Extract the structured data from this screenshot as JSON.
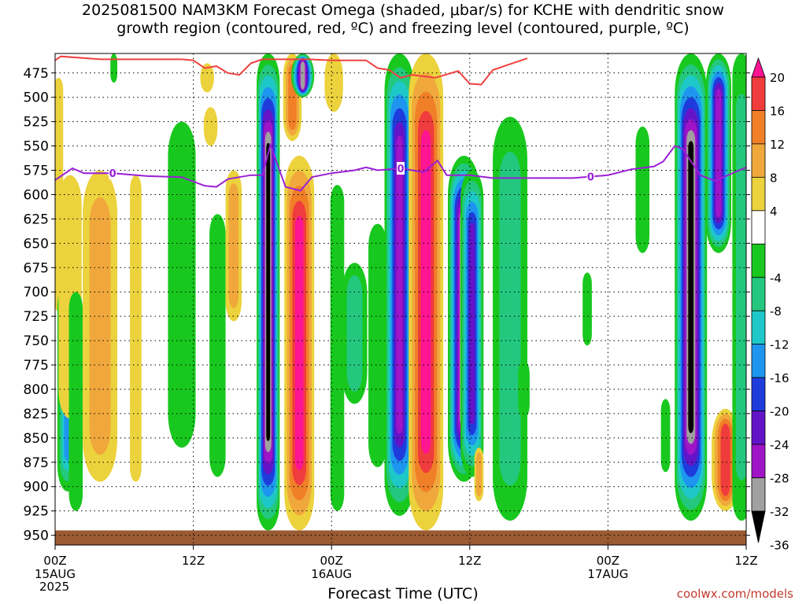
{
  "title": {
    "line1": "2025081500 NAM3KM Forecast Omega (shaded, μbar/s) for KCHE with dendritic snow",
    "line2": "growth region (contoured, red, ºC) and freezing level (contoured, purple, ºC)"
  },
  "credit": "coolwx.com/models",
  "chart_data": {
    "type": "heatmap",
    "title": "2025081500 NAM3KM Forecast Omega (shaded, μbar/s) for KCHE with dendritic snow growth region (contoured, red, ºC) and freezing level (contoured, purple, ºC)",
    "xlabel": "Forecast Time (UTC)",
    "year": "2025",
    "x_ticks": [
      {
        "hour": 0,
        "label": "00Z",
        "sub": "15AUG"
      },
      {
        "hour": 12,
        "label": "12Z",
        "sub": ""
      },
      {
        "hour": 24,
        "label": "00Z",
        "sub": "16AUG"
      },
      {
        "hour": 36,
        "label": "12Z",
        "sub": ""
      },
      {
        "hour": 48,
        "label": "00Z",
        "sub": "17AUG"
      },
      {
        "hour": 60,
        "label": "12Z",
        "sub": ""
      }
    ],
    "xlim": [
      0,
      60
    ],
    "ylim": [
      960,
      455
    ],
    "y_ticks": [
      475,
      500,
      525,
      550,
      575,
      600,
      625,
      650,
      675,
      700,
      725,
      750,
      775,
      800,
      825,
      850,
      875,
      900,
      925,
      950
    ],
    "grid": true,
    "colorbar": {
      "labels": [
        "20",
        "16",
        "12",
        "8",
        "4",
        "-4",
        "-8",
        "-12",
        "-16",
        "-20",
        "-24",
        "-28",
        "-32",
        "-36"
      ],
      "colors": [
        "#ff1493",
        "#f03c3c",
        "#f07f28",
        "#f0a83c",
        "#ecd23c",
        "#ffffff",
        "#18c81e",
        "#23c87e",
        "#1ec8c8",
        "#1e96f0",
        "#1e3cdc",
        "#6414c8",
        "#a014c8",
        "#a0a0a0",
        "#000000"
      ]
    },
    "freezing_level": {
      "label": "0",
      "points": [
        [
          0,
          585
        ],
        [
          1.5,
          573
        ],
        [
          2.5,
          578
        ],
        [
          5,
          578
        ],
        [
          8,
          581
        ],
        [
          11,
          582
        ],
        [
          13,
          591
        ],
        [
          14,
          592
        ],
        [
          15,
          584
        ],
        [
          17,
          580
        ],
        [
          18,
          580
        ],
        [
          18.7,
          549
        ],
        [
          20,
          592
        ],
        [
          21.3,
          596
        ],
        [
          22.3,
          582
        ],
        [
          24,
          578
        ],
        [
          26,
          575
        ],
        [
          27,
          572
        ],
        [
          28,
          575
        ],
        [
          30,
          573
        ],
        [
          32,
          577
        ],
        [
          33.2,
          565
        ],
        [
          34,
          580
        ],
        [
          36,
          580
        ],
        [
          38,
          583
        ],
        [
          42,
          583
        ],
        [
          45,
          583
        ],
        [
          48,
          580
        ],
        [
          50,
          574
        ],
        [
          52,
          571
        ],
        [
          52.8,
          566
        ],
        [
          53.8,
          550
        ],
        [
          54.5,
          553
        ],
        [
          56,
          580
        ],
        [
          57.3,
          586
        ],
        [
          59,
          577
        ],
        [
          60,
          572
        ]
      ],
      "label_hours": [
        5,
        30,
        46.5
      ]
    },
    "dgz_contour": {
      "points": [
        [
          0,
          462
        ],
        [
          0.5,
          458
        ],
        [
          4,
          461
        ],
        [
          8,
          461
        ],
        [
          11,
          461
        ],
        [
          12,
          462
        ],
        [
          13,
          470
        ],
        [
          14,
          468
        ],
        [
          15,
          475
        ],
        [
          16,
          477
        ],
        [
          17,
          465
        ],
        [
          18,
          461
        ],
        [
          22,
          461
        ],
        [
          24,
          462
        ],
        [
          27,
          462
        ],
        [
          28,
          470
        ],
        [
          29,
          472
        ],
        [
          30,
          480
        ],
        [
          31,
          477
        ],
        [
          33,
          480
        ],
        [
          35,
          473
        ],
        [
          36,
          486
        ],
        [
          37,
          487
        ],
        [
          38,
          472
        ],
        [
          40,
          464
        ],
        [
          41,
          460
        ]
      ]
    },
    "omega_cells": [
      {
        "hour": 0.3,
        "p0": 480,
        "p1": 720,
        "hw": 0.4,
        "v": 6
      },
      {
        "hour": 1.1,
        "p0": 690,
        "p1": 905,
        "hw": 0.9,
        "v": -16
      },
      {
        "hour": 1.3,
        "p0": 580,
        "p1": 830,
        "hw": 1.0,
        "v": 6
      },
      {
        "hour": 1.8,
        "p0": 700,
        "p1": 925,
        "hw": 0.6,
        "v": -6
      },
      {
        "hour": 3.9,
        "p0": 575,
        "p1": 895,
        "hw": 1.5,
        "v": 10
      },
      {
        "hour": 5.1,
        "p0": 455,
        "p1": 485,
        "hw": 0.3,
        "v": -6
      },
      {
        "hour": 7,
        "p0": 580,
        "p1": 895,
        "hw": 0.5,
        "v": 6
      },
      {
        "hour": 11,
        "p0": 525,
        "p1": 860,
        "hw": 1.2,
        "v": -6
      },
      {
        "hour": 13.2,
        "p0": 465,
        "p1": 495,
        "hw": 0.6,
        "v": 6
      },
      {
        "hour": 13.5,
        "p0": 510,
        "p1": 550,
        "hw": 0.6,
        "v": 6
      },
      {
        "hour": 14.1,
        "p0": 620,
        "p1": 890,
        "hw": 0.7,
        "v": -6
      },
      {
        "hour": 15.5,
        "p0": 575,
        "p1": 730,
        "hw": 0.7,
        "v": 8
      },
      {
        "hour": 18.5,
        "p0": 455,
        "p1": 945,
        "hw": 1.0,
        "v": -36
      },
      {
        "hour": 20.6,
        "p0": 455,
        "p1": 545,
        "hw": 0.8,
        "v": 12
      },
      {
        "hour": 21.2,
        "p0": 560,
        "p1": 945,
        "hw": 1.3,
        "v": 20
      },
      {
        "hour": 21.5,
        "p0": 455,
        "p1": 500,
        "hw": 1.0,
        "v": -32
      },
      {
        "hour": 24.2,
        "p0": 455,
        "p1": 515,
        "hw": 0.8,
        "v": 6
      },
      {
        "hour": 24.5,
        "p0": 590,
        "p1": 925,
        "hw": 0.6,
        "v": -6
      },
      {
        "hour": 26,
        "p0": 670,
        "p1": 815,
        "hw": 1.1,
        "v": -8
      },
      {
        "hour": 28,
        "p0": 630,
        "p1": 880,
        "hw": 0.8,
        "v": -6
      },
      {
        "hour": 29.9,
        "p0": 455,
        "p1": 930,
        "hw": 1.3,
        "v": -28
      },
      {
        "hour": 32.2,
        "p0": 455,
        "p1": 945,
        "hw": 1.5,
        "v": 20
      },
      {
        "hour": 35.5,
        "p0": 560,
        "p1": 895,
        "hw": 1.4,
        "v": -36
      },
      {
        "hour": 36.2,
        "p0": 575,
        "p1": 890,
        "hw": 1.0,
        "v": -24
      },
      {
        "hour": 36.8,
        "p0": 860,
        "p1": 915,
        "hw": 0.4,
        "v": 8
      },
      {
        "hour": 39.5,
        "p0": 520,
        "p1": 935,
        "hw": 1.5,
        "v": -8
      },
      {
        "hour": 40.7,
        "p0": 770,
        "p1": 830,
        "hw": 0.5,
        "v": -6
      },
      {
        "hour": 46.2,
        "p0": 680,
        "p1": 755,
        "hw": 0.4,
        "v": -6
      },
      {
        "hour": 51,
        "p0": 530,
        "p1": 660,
        "hw": 0.6,
        "v": -6
      },
      {
        "hour": 53,
        "p0": 810,
        "p1": 885,
        "hw": 0.4,
        "v": -6
      },
      {
        "hour": 55.2,
        "p0": 455,
        "p1": 935,
        "hw": 1.4,
        "v": -36
      },
      {
        "hour": 57.6,
        "p0": 455,
        "p1": 660,
        "hw": 1.1,
        "v": -28
      },
      {
        "hour": 58.2,
        "p0": 820,
        "p1": 925,
        "hw": 1.2,
        "v": 16
      },
      {
        "hour": 59.6,
        "p0": 455,
        "p1": 935,
        "hw": 0.8,
        "v": -8
      }
    ],
    "ground": {
      "p0": 945,
      "p1": 960
    }
  }
}
